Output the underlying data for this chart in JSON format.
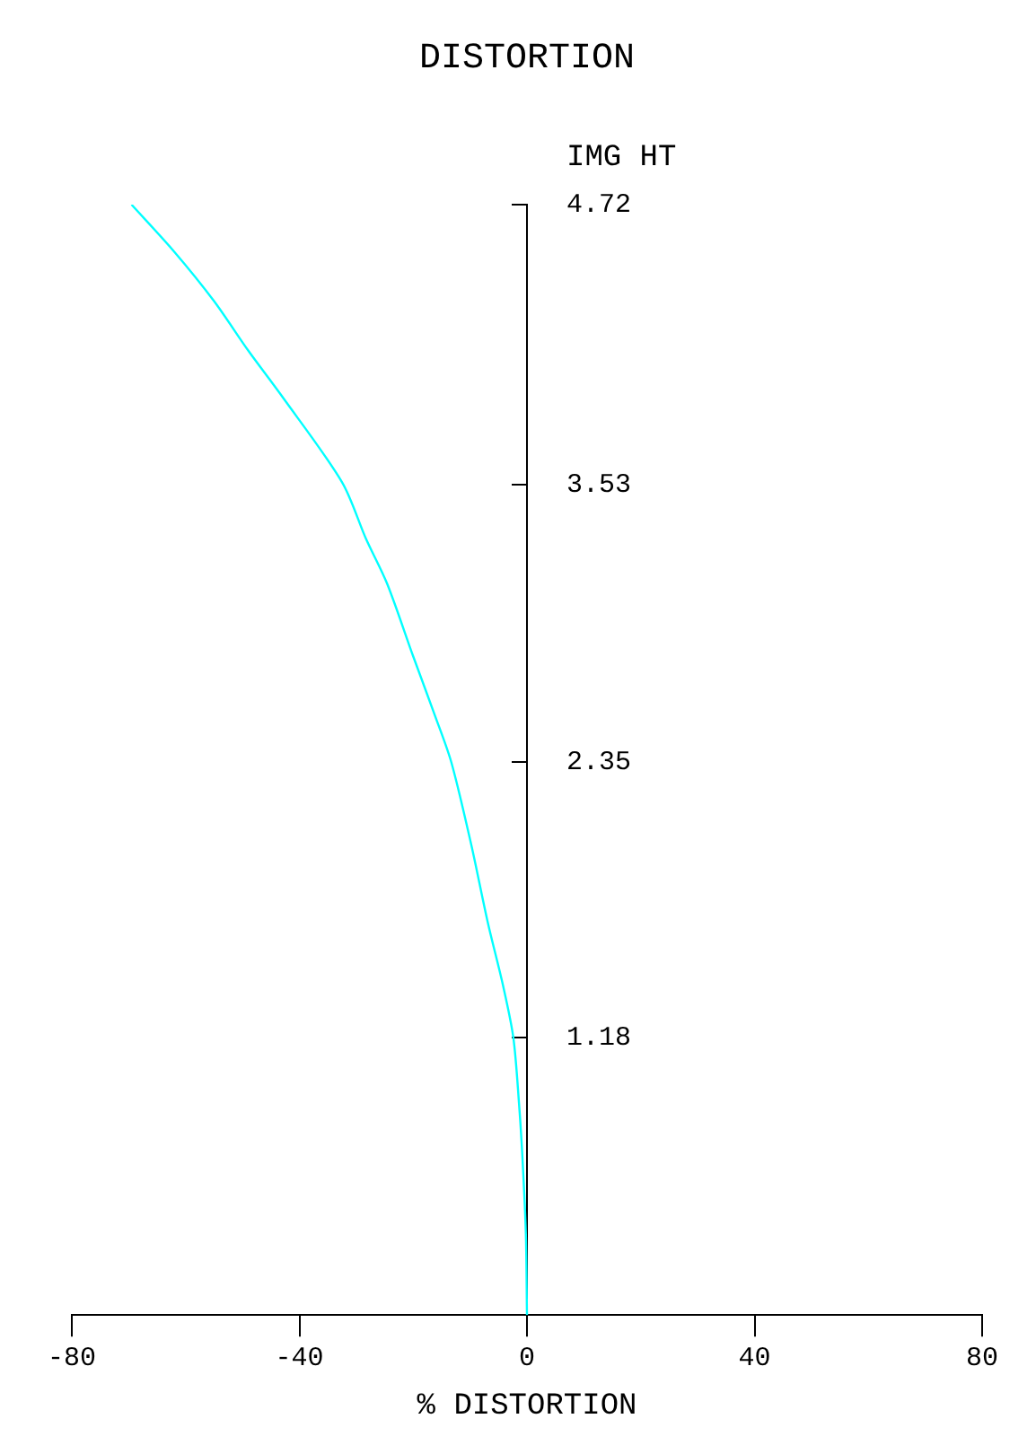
{
  "chart_data": {
    "type": "line",
    "title": "DISTORTION",
    "xlabel": "% DISTORTION",
    "ylabel": "IMG HT",
    "series": [
      {
        "color": "#00ffff",
        "x": [
          0,
          -0.2,
          -0.8,
          -1.4,
          -2.4,
          -4.2,
          -6.9,
          -9.8,
          -13.3,
          -16.2,
          -20.0,
          -24.6,
          -28.3,
          -32.5,
          -43.2,
          -49.0,
          -55.0,
          -62.0,
          -69.5
        ],
        "values": [
          0,
          0.35,
          0.67,
          0.9,
          1.18,
          1.4,
          1.67,
          2.0,
          2.35,
          2.55,
          2.8,
          3.11,
          3.3,
          3.54,
          3.91,
          4.1,
          4.31,
          4.52,
          4.72
        ]
      }
    ],
    "xlim": [
      -80,
      80
    ],
    "xticks": [
      -80,
      -40,
      0,
      40,
      80
    ],
    "ylim": [
      0,
      4.72
    ],
    "yticks": [
      1.18,
      2.35,
      3.53,
      4.72
    ],
    "grid": false,
    "legend": false,
    "marker": "none",
    "line_style": "solid"
  }
}
